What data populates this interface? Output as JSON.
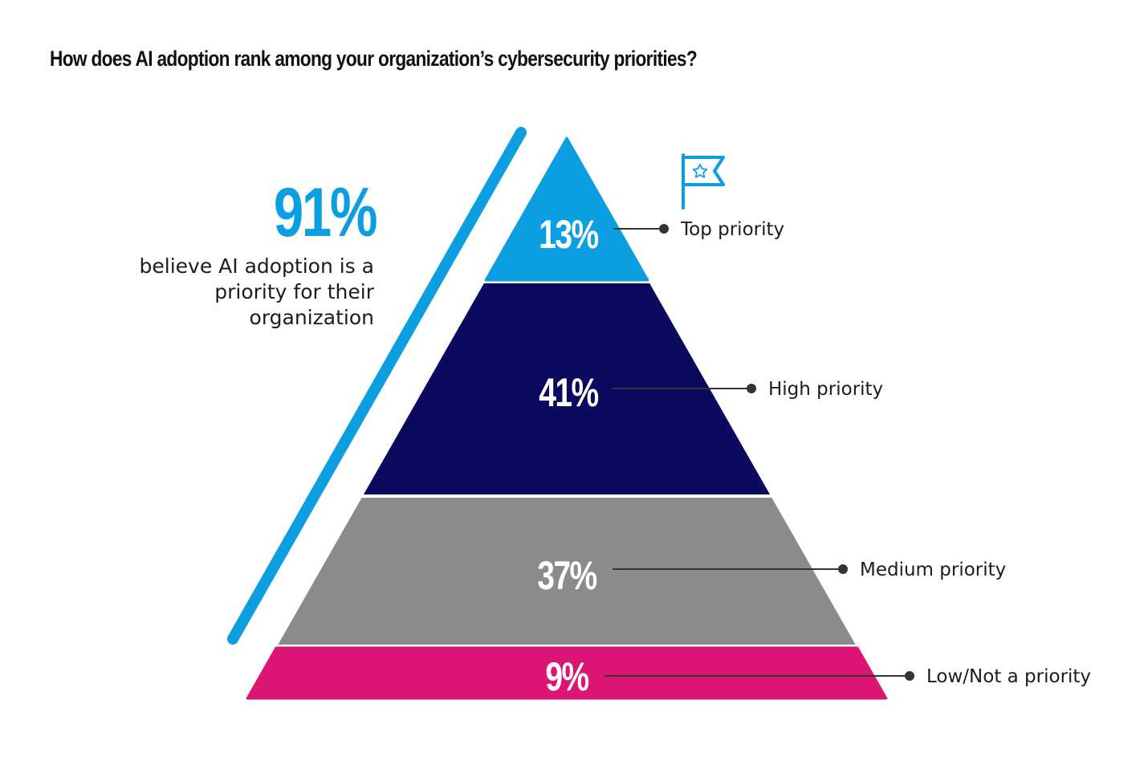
{
  "title": "How does AI adoption rank among your organization’s cybersecurity priorities?",
  "highlight": {
    "value": "91%",
    "description": "believe AI adoption is a priority for their organization",
    "color": "#0b9ee0"
  },
  "icon": "flag-star-icon",
  "chart_data": {
    "type": "pyramid",
    "title": "How does AI adoption rank among your organization’s cybersecurity priorities?",
    "unit": "%",
    "order": "top-to-bottom",
    "categories": [
      "Top priority",
      "High priority",
      "Medium priority",
      "Low/Not a priority"
    ],
    "values": [
      13,
      41,
      37,
      9
    ],
    "labels": [
      "13%",
      "41%",
      "37%",
      "9%"
    ],
    "colors": [
      "#0b9ee0",
      "#0b0a5e",
      "#8a8b8a",
      "#dc1473"
    ],
    "bracket_color": "#0b9ee0",
    "legend": "right"
  }
}
